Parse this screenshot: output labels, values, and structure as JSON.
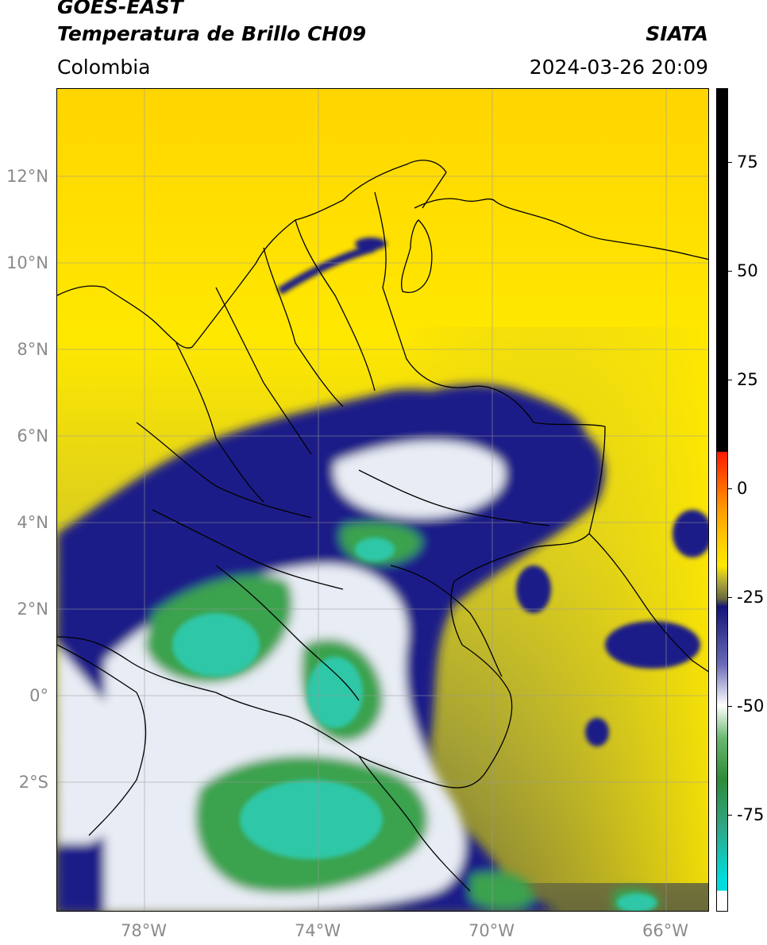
{
  "header": {
    "satellite": "GOES-EAST",
    "product": "Temperatura de Brillo CH09",
    "organization": "SIATA",
    "region": "Colombia",
    "datetime": "2024-03-26 20:09"
  },
  "map": {
    "lat_labels": [
      "12°N",
      "10°N",
      "8°N",
      "6°N",
      "4°N",
      "2°N",
      "0°",
      "2°S"
    ],
    "lon_labels": [
      "78°W",
      "74°W",
      "70°W",
      "66°W"
    ],
    "lon_range": [
      -80,
      -65
    ],
    "lat_range": [
      -5,
      14
    ]
  },
  "colorbar": {
    "labels": [
      "75",
      "50",
      "25",
      "0",
      "-25",
      "-50",
      "-75"
    ],
    "range": [
      -100,
      90
    ],
    "colors": {
      "above_10": "#000000",
      "red": "#ff1a00",
      "orange": "#ff9900",
      "yellow": "#ffe800",
      "olive": "#8a8a2a",
      "navy": "#141478",
      "white": "#ffffff",
      "green": "#2e8b3a",
      "cyan": "#00dcdc"
    }
  },
  "colors": {
    "land_yellow": "#ffe800",
    "olive": "#b8b43a",
    "dark_olive": "#6e6e3a",
    "cloud_navy": "#1c1c88",
    "cloud_white": "#e8ecf4",
    "cloud_green": "#3aa24e",
    "cloud_teal": "#2ec8a8"
  }
}
